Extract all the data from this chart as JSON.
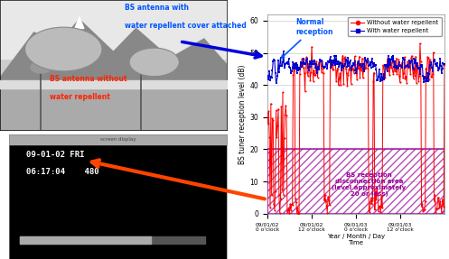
{
  "ylabel": "BS tuner reception level (dB)",
  "ylim": [
    0,
    62
  ],
  "yticks": [
    0,
    10,
    20,
    30,
    40,
    50,
    60
  ],
  "xtick_positions": [
    0,
    1,
    2,
    3
  ],
  "xtick_line1": [
    "09/01/02",
    "09/01/02",
    "09/01/03",
    "09/01/03"
  ],
  "xtick_line2": [
    "0 o'clock",
    "12 o'clock",
    "0 o'clock",
    "12 o'clock"
  ],
  "xlabel_line1": "Year / Month / Day",
  "xlabel_line2": "Time",
  "normal_reception_label": "Normal\nreception",
  "legend_red_label": "Without water repellent",
  "legend_blue_label": "With water repellent",
  "disconnection_label": "BS reception\ndisconnection area\n(level approximately\n20 or less)",
  "disconnection_color": "#990099",
  "red_color": "#FF0000",
  "blue_color": "#0000CC",
  "blue_arrow_color": "#0000DD",
  "orange_arrow_color": "#FF4400",
  "annotation_blue_color": "#0055FF",
  "annotation_red_color": "#FF2200",
  "grid_color": "#CCCCCC",
  "bg_color": "#FFFFFF",
  "top_img_bg": "#CCCCCC",
  "bot_img_bg": "#000000"
}
